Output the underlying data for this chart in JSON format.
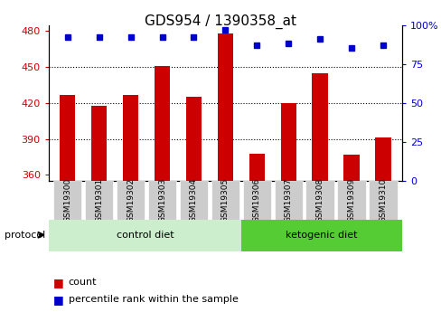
{
  "title": "GDS954 / 1390358_at",
  "samples": [
    "GSM19300",
    "GSM19301",
    "GSM19302",
    "GSM19303",
    "GSM19304",
    "GSM19305",
    "GSM19306",
    "GSM19307",
    "GSM19308",
    "GSM19309",
    "GSM19310"
  ],
  "counts": [
    427,
    418,
    427,
    451,
    425,
    478,
    378,
    420,
    445,
    377,
    391
  ],
  "percentiles": [
    92,
    92,
    92,
    92,
    92,
    97,
    87,
    88,
    91,
    85,
    87
  ],
  "ylim_left": [
    355,
    485
  ],
  "ylim_right": [
    0,
    100
  ],
  "yticks_left": [
    360,
    390,
    420,
    450,
    480
  ],
  "yticks_right": [
    0,
    25,
    50,
    75,
    100
  ],
  "bar_color": "#cc0000",
  "dot_color": "#0000cc",
  "n_control": 6,
  "n_ketogenic": 5,
  "control_bg": "#cceecc",
  "ketogenic_bg": "#55cc33",
  "tick_bg": "#cccccc",
  "legend_count_color": "#cc0000",
  "legend_dot_color": "#0000cc",
  "title_fontsize": 11,
  "gridline_values": [
    390,
    420,
    450
  ]
}
